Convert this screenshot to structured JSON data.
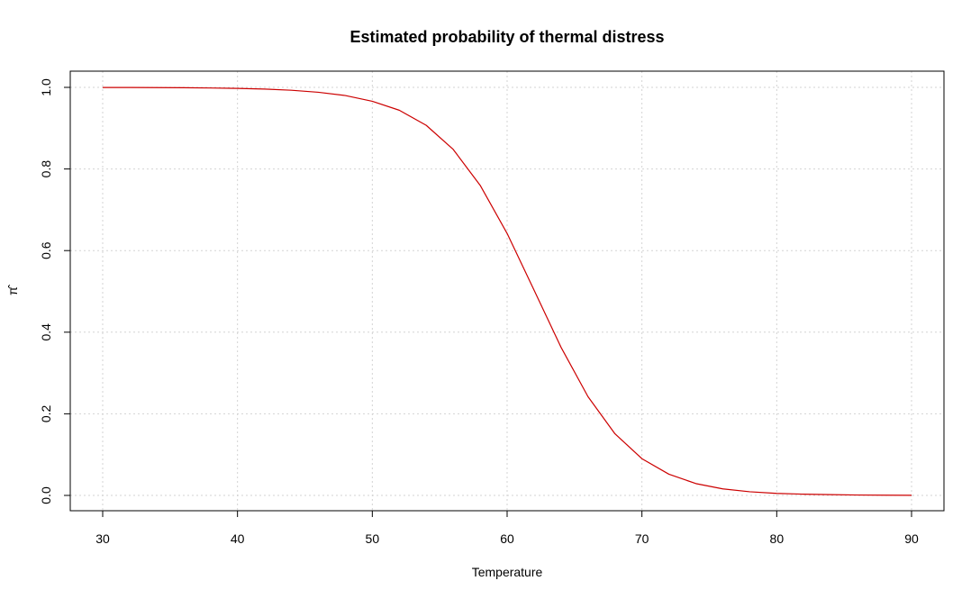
{
  "chart_data": {
    "type": "line",
    "title": "Estimated probability of thermal distress",
    "xlabel": "Temperature",
    "ylabel": "π̂",
    "xlim": [
      30,
      90
    ],
    "ylim": [
      0,
      1
    ],
    "x_ticks": [
      "30",
      "40",
      "50",
      "60",
      "70",
      "80",
      "90"
    ],
    "y_ticks": [
      "0.0",
      "0.2",
      "0.4",
      "0.6",
      "0.8",
      "1.0"
    ],
    "grid": true,
    "series": [
      {
        "color": "#cc0000",
        "x": [
          30,
          32,
          34,
          36,
          38,
          40,
          42,
          44,
          46,
          48,
          50,
          52,
          54,
          56,
          58,
          60,
          62,
          64,
          66,
          68,
          70,
          72,
          74,
          76,
          78,
          80,
          82,
          84,
          86,
          88,
          90
        ],
        "y": [
          0.9998,
          0.9997,
          0.9995,
          0.9991,
          0.9985,
          0.9975,
          0.9958,
          0.993,
          0.988,
          0.98,
          0.966,
          0.944,
          0.907,
          0.848,
          0.76,
          0.642,
          0.503,
          0.363,
          0.242,
          0.151,
          0.09,
          0.052,
          0.029,
          0.016,
          0.009,
          0.005,
          0.003,
          0.002,
          0.001,
          0.0006,
          0.0003
        ]
      }
    ],
    "colors": {
      "curve": "#cc0000",
      "grid": "#d3d3d3",
      "axis": "#000000"
    }
  }
}
